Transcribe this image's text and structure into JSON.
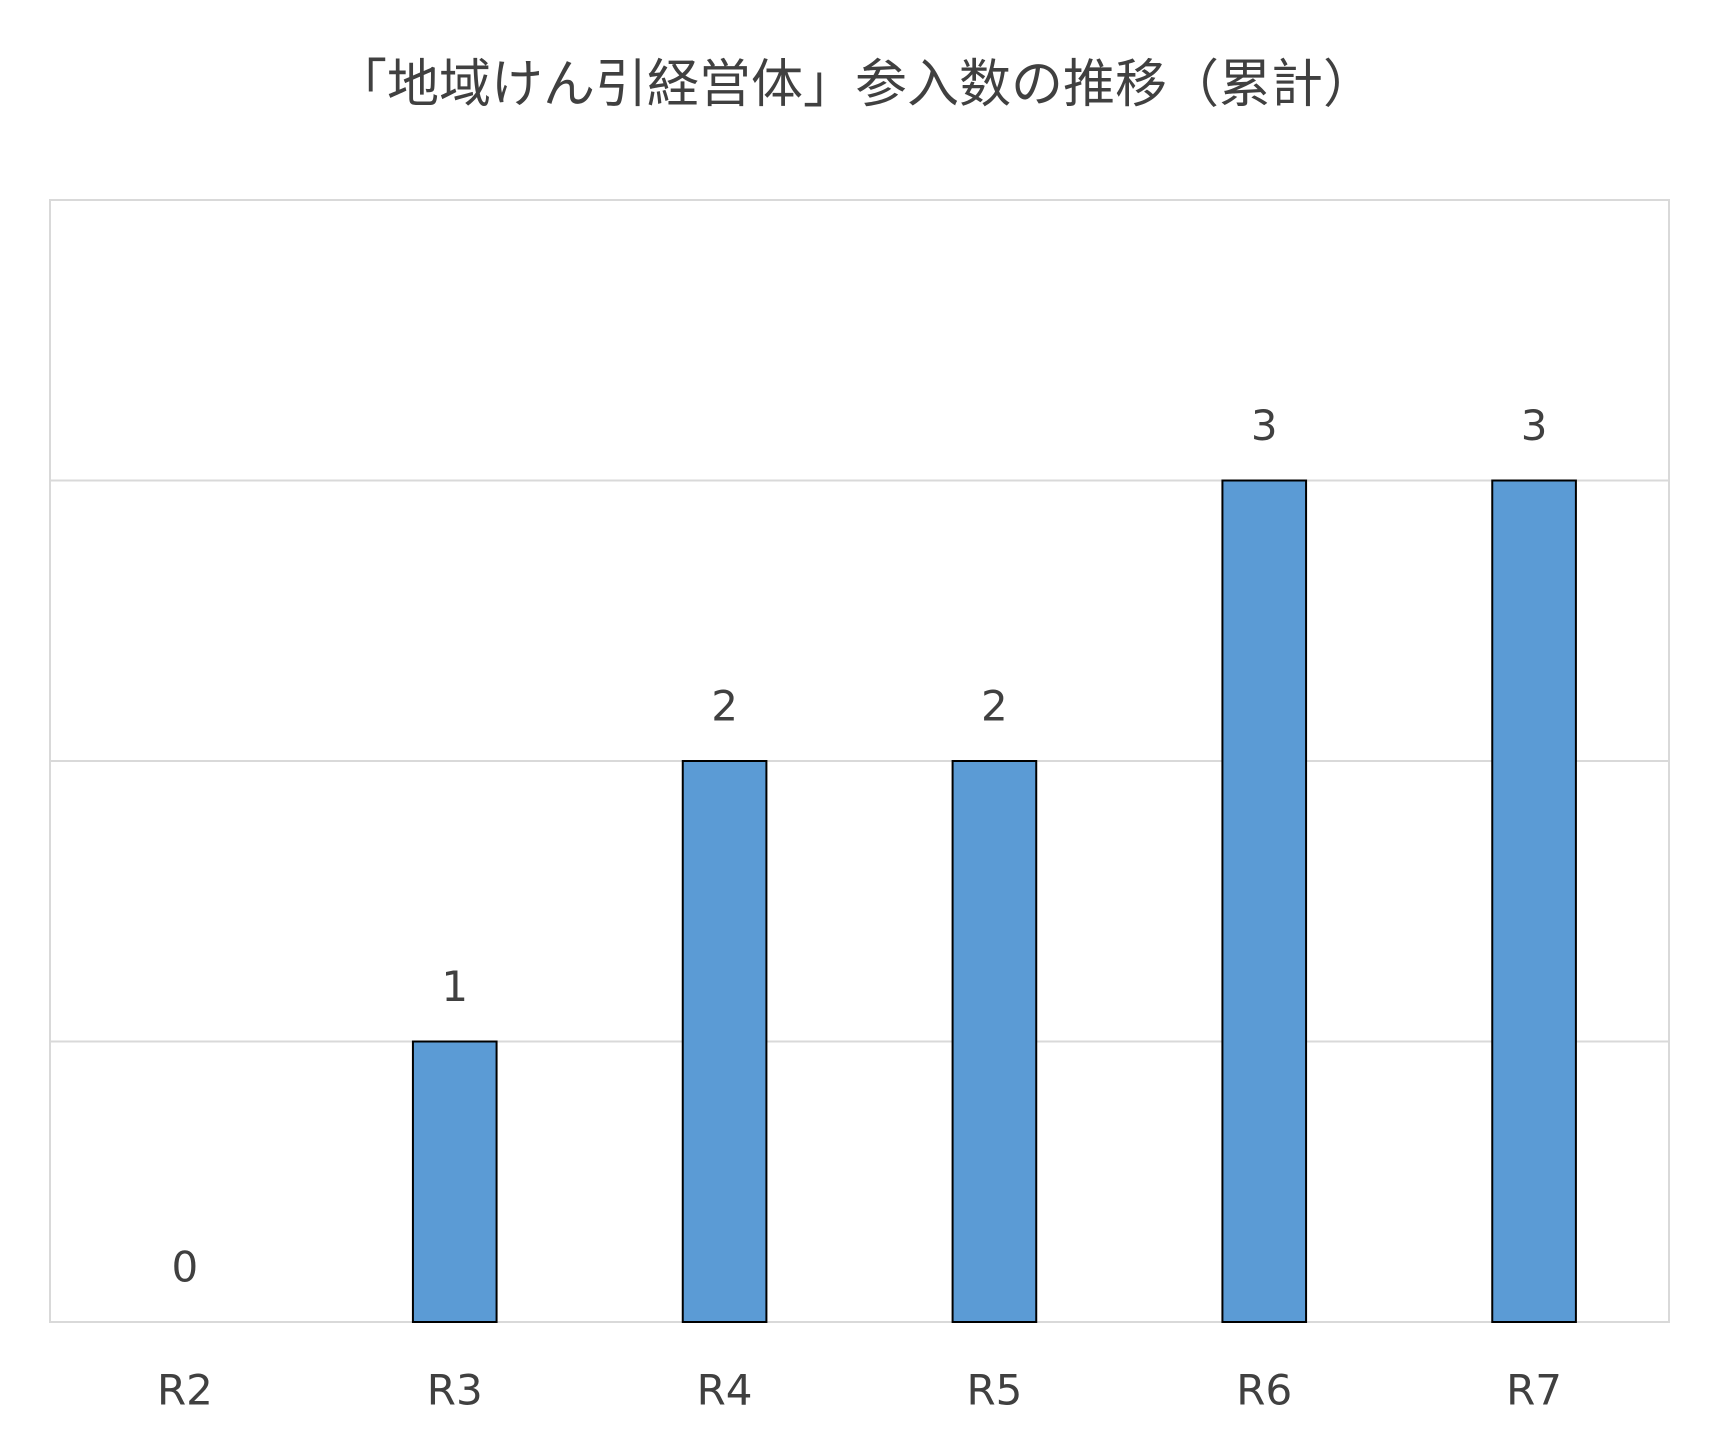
{
  "chart_data": {
    "type": "bar",
    "title": "「地域けん引経営体」参入数の推移（累計）",
    "categories": [
      "R2",
      "R3",
      "R4",
      "R5",
      "R6",
      "R7"
    ],
    "values": [
      0,
      1,
      2,
      2,
      3,
      3
    ],
    "color": "#5b9bd5",
    "ylim": [
      0,
      4
    ],
    "yticks": [
      0,
      1,
      2,
      3,
      4
    ],
    "grid": true
  }
}
